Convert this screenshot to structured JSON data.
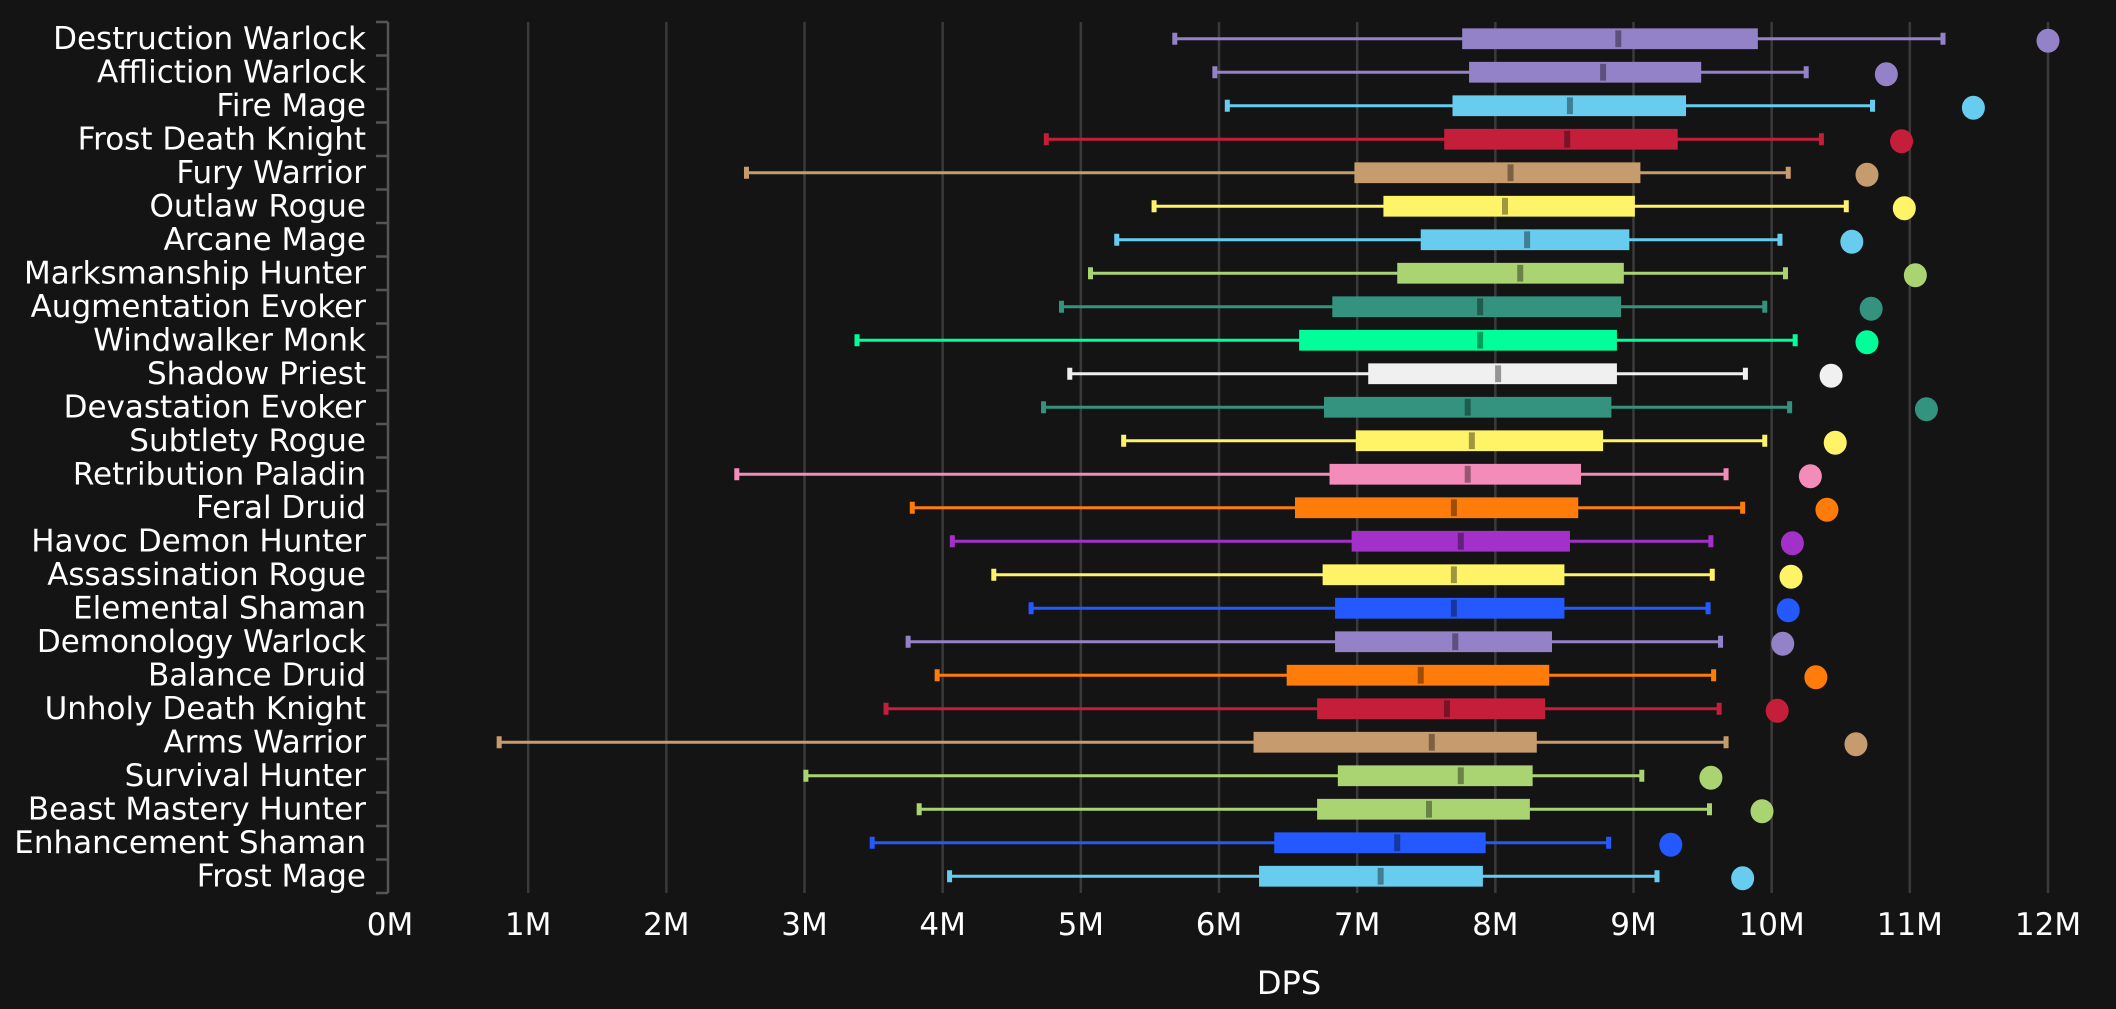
{
  "chart_data": {
    "type": "boxplot",
    "title": "",
    "xlabel": "DPS",
    "ylabel": "",
    "xlim": [
      0,
      12000000
    ],
    "x_ticks": [
      0,
      1000000,
      2000000,
      3000000,
      4000000,
      5000000,
      6000000,
      7000000,
      8000000,
      9000000,
      10000000,
      11000000,
      12000000
    ],
    "x_tick_labels": [
      "0M",
      "1M",
      "2M",
      "3M",
      "4M",
      "5M",
      "6M",
      "7M",
      "8M",
      "9M",
      "10M",
      "11M",
      "12M"
    ],
    "grid": "vertical",
    "legend": "none",
    "categories": [
      "Destruction Warlock",
      "Affliction Warlock",
      "Fire Mage",
      "Frost Death Knight",
      "Fury Warrior",
      "Outlaw Rogue",
      "Arcane Mage",
      "Marksmanship Hunter",
      "Augmentation Evoker",
      "Windwalker Monk",
      "Shadow Priest",
      "Devastation Evoker",
      "Subtlety Rogue",
      "Retribution Paladin",
      "Feral Druid",
      "Havoc Demon Hunter",
      "Assassination Rogue",
      "Elemental Shaman",
      "Demonology Warlock",
      "Balance Druid",
      "Unholy Death Knight",
      "Arms Warrior",
      "Survival Hunter",
      "Beast Mastery Hunter",
      "Enhancement Shaman",
      "Frost Mage"
    ],
    "series": [
      {
        "name": "Destruction Warlock",
        "color": "#9482c9",
        "min": 5680000,
        "q1": 7760000,
        "median": 8890000,
        "q3": 9900000,
        "max": 11240000,
        "outlier": 12000000
      },
      {
        "name": "Affliction Warlock",
        "color": "#9482c9",
        "min": 5970000,
        "q1": 7810000,
        "median": 8780000,
        "q3": 9490000,
        "max": 10250000,
        "outlier": 10830000
      },
      {
        "name": "Fire Mage",
        "color": "#68ccef",
        "min": 6060000,
        "q1": 7690000,
        "median": 8540000,
        "q3": 9380000,
        "max": 10730000,
        "outlier": 11460000
      },
      {
        "name": "Frost Death Knight",
        "color": "#c41e3b",
        "min": 4750000,
        "q1": 7630000,
        "median": 8520000,
        "q3": 9320000,
        "max": 10360000,
        "outlier": 10940000
      },
      {
        "name": "Fury Warrior",
        "color": "#c69b6d",
        "min": 2580000,
        "q1": 6980000,
        "median": 8110000,
        "q3": 9050000,
        "max": 10120000,
        "outlier": 10690000
      },
      {
        "name": "Outlaw Rogue",
        "color": "#fff468",
        "min": 5530000,
        "q1": 7190000,
        "median": 8070000,
        "q3": 9010000,
        "max": 10540000,
        "outlier": 10960000
      },
      {
        "name": "Arcane Mage",
        "color": "#68ccef",
        "min": 5260000,
        "q1": 7460000,
        "median": 8230000,
        "q3": 8970000,
        "max": 10060000,
        "outlier": 10580000
      },
      {
        "name": "Marksmanship Hunter",
        "color": "#aad372",
        "min": 5070000,
        "q1": 7290000,
        "median": 8180000,
        "q3": 8930000,
        "max": 10100000,
        "outlier": 11040000
      },
      {
        "name": "Augmentation Evoker",
        "color": "#33937f",
        "min": 4860000,
        "q1": 6820000,
        "median": 7890000,
        "q3": 8910000,
        "max": 9950000,
        "outlier": 10720000
      },
      {
        "name": "Windwalker Monk",
        "color": "#00ff98",
        "min": 3380000,
        "q1": 6580000,
        "median": 7890000,
        "q3": 8880000,
        "max": 10170000,
        "outlier": 10690000
      },
      {
        "name": "Shadow Priest",
        "color": "#f0f0f0",
        "min": 4920000,
        "q1": 7080000,
        "median": 8020000,
        "q3": 8880000,
        "max": 9810000,
        "outlier": 10430000
      },
      {
        "name": "Devastation Evoker",
        "color": "#33937f",
        "min": 4730000,
        "q1": 6760000,
        "median": 7800000,
        "q3": 8840000,
        "max": 10130000,
        "outlier": 11120000
      },
      {
        "name": "Subtlety Rogue",
        "color": "#fff468",
        "min": 5310000,
        "q1": 6990000,
        "median": 7830000,
        "q3": 8780000,
        "max": 9950000,
        "outlier": 10460000
      },
      {
        "name": "Retribution Paladin",
        "color": "#f48cba",
        "min": 2510000,
        "q1": 6800000,
        "median": 7800000,
        "q3": 8620000,
        "max": 9670000,
        "outlier": 10280000
      },
      {
        "name": "Feral Druid",
        "color": "#ff7c0a",
        "min": 3780000,
        "q1": 6550000,
        "median": 7700000,
        "q3": 8600000,
        "max": 9790000,
        "outlier": 10400000
      },
      {
        "name": "Havoc Demon Hunter",
        "color": "#a330c9",
        "min": 4070000,
        "q1": 6960000,
        "median": 7750000,
        "q3": 8540000,
        "max": 9560000,
        "outlier": 10150000
      },
      {
        "name": "Assassination Rogue",
        "color": "#fff468",
        "min": 4370000,
        "q1": 6750000,
        "median": 7700000,
        "q3": 8500000,
        "max": 9570000,
        "outlier": 10140000
      },
      {
        "name": "Elemental Shaman",
        "color": "#2459ff",
        "min": 4640000,
        "q1": 6840000,
        "median": 7700000,
        "q3": 8500000,
        "max": 9540000,
        "outlier": 10120000
      },
      {
        "name": "Demonology Warlock",
        "color": "#9482c9",
        "min": 3750000,
        "q1": 6840000,
        "median": 7710000,
        "q3": 8410000,
        "max": 9630000,
        "outlier": 10080000
      },
      {
        "name": "Balance Druid",
        "color": "#ff7c0a",
        "min": 3960000,
        "q1": 6490000,
        "median": 7460000,
        "q3": 8390000,
        "max": 9580000,
        "outlier": 10320000
      },
      {
        "name": "Unholy Death Knight",
        "color": "#c41e3b",
        "min": 3590000,
        "q1": 6710000,
        "median": 7650000,
        "q3": 8360000,
        "max": 9620000,
        "outlier": 10040000
      },
      {
        "name": "Arms Warrior",
        "color": "#c69b6d",
        "min": 790000,
        "q1": 6250000,
        "median": 7540000,
        "q3": 8300000,
        "max": 9670000,
        "outlier": 10610000
      },
      {
        "name": "Survival Hunter",
        "color": "#aad372",
        "min": 3010000,
        "q1": 6860000,
        "median": 7750000,
        "q3": 8270000,
        "max": 9060000,
        "outlier": 9560000
      },
      {
        "name": "Beast Mastery Hunter",
        "color": "#aad372",
        "min": 3830000,
        "q1": 6710000,
        "median": 7520000,
        "q3": 8250000,
        "max": 9550000,
        "outlier": 9930000
      },
      {
        "name": "Enhancement Shaman",
        "color": "#2459ff",
        "min": 3490000,
        "q1": 6400000,
        "median": 7290000,
        "q3": 7930000,
        "max": 8820000,
        "outlier": 9270000
      },
      {
        "name": "Frost Mage",
        "color": "#68ccef",
        "min": 4050000,
        "q1": 6290000,
        "median": 7170000,
        "q3": 7910000,
        "max": 9170000,
        "outlier": 9790000
      }
    ]
  },
  "colors": {
    "background": "#141414",
    "grid": "#3a3a3a",
    "text": "#ffffff"
  }
}
